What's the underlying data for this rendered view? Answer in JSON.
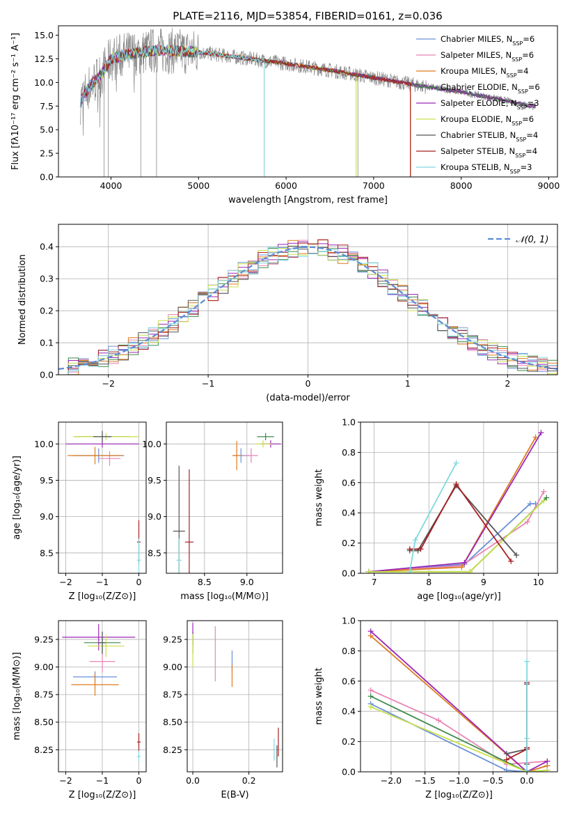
{
  "figure_title": "PLATE=2116, MJD=53854, FIBERID=0161, z=0.036",
  "colors": {
    "chabrier_miles": "#6a8fd8",
    "salpeter_miles": "#e884b4",
    "kroupa_miles": "#e07b1f",
    "chabrier_elodie": "#3c8a4a",
    "salpeter_elodie": "#9b27b5",
    "kroupa_elodie": "#c8e04a",
    "chabrier_stelib": "#555555",
    "salpeter_stelib": "#a81f22",
    "kroupa_stelib": "#7fd8e0",
    "observed_spectrum": "#888888",
    "normal_curve": "#5b8bd6",
    "grid": "#b0b0b0"
  },
  "legend": {
    "series": [
      {
        "label": "Chabrier MILES, N",
        "sub": "SSP",
        "count": "=6",
        "color_key": "chabrier_miles"
      },
      {
        "label": "Salpeter MILES, N",
        "sub": "SSP",
        "count": "=6",
        "color_key": "salpeter_miles"
      },
      {
        "label": "Kroupa MILES, N",
        "sub": "SSP",
        "count": "=4",
        "color_key": "kroupa_miles"
      },
      {
        "label": "Chabrier ELODIE, N",
        "sub": "SSP",
        "count": "=6",
        "color_key": "chabrier_elodie"
      },
      {
        "label": "Salpeter ELODIE, N",
        "sub": "SSP",
        "count": "=3",
        "color_key": "salpeter_elodie"
      },
      {
        "label": "Kroupa ELODIE, N",
        "sub": "SSP",
        "count": "=6",
        "color_key": "kroupa_elodie"
      },
      {
        "label": "Chabrier STELIB, N",
        "sub": "SSP",
        "count": "=4",
        "color_key": "chabrier_stelib"
      },
      {
        "label": "Salpeter STELIB, N",
        "sub": "SSP",
        "count": "=4",
        "color_key": "salpeter_stelib"
      },
      {
        "label": "Kroupa STELIB, N",
        "sub": "SSP",
        "count": "=3",
        "color_key": "kroupa_stelib"
      }
    ],
    "normal_label": "𝒩(0, 1)"
  },
  "chart_data": [
    {
      "id": "spectrum",
      "type": "line",
      "xlabel": "wavelength [Angstrom, rest frame]",
      "ylabel": "Flux [fλ10⁻¹⁷ erg cm⁻² s⁻¹ A⁻¹]",
      "xlim": [
        3400,
        9100
      ],
      "ylim": [
        0,
        16
      ],
      "xticks": [
        4000,
        5000,
        6000,
        7000,
        8000,
        9000
      ],
      "yticks": [
        0.0,
        2.5,
        5.0,
        7.5,
        10.0,
        12.5,
        15.0
      ],
      "ytick_labels": [
        "0.0",
        "2.5",
        "5.0",
        "7.5",
        "10.0",
        "12.5",
        "15.0"
      ],
      "grid": false,
      "legend_position": "upper right",
      "continuum": {
        "wavelength": [
          3650,
          3750,
          3900,
          4000,
          4200,
          4500,
          5000,
          5500,
          6000,
          6500,
          7000,
          7500,
          8000,
          8500,
          8800
        ],
        "flux": [
          8.0,
          9.5,
          11.0,
          12.5,
          13.0,
          13.4,
          13.2,
          12.6,
          12.0,
          11.3,
          10.5,
          9.7,
          9.0,
          8.1,
          7.5
        ]
      },
      "model_wavelength_range": [
        3650,
        8850
      ],
      "model_cutoffs": [
        {
          "series": "kroupa_elodie",
          "start": 3900,
          "end": 6800
        },
        {
          "series": "kroupa_stelib",
          "start": 3650,
          "end": 5750
        },
        {
          "series": "kroupa_miles",
          "start": 3650,
          "end": 7420
        },
        {
          "series": "salpeter_stelib",
          "start": 3650,
          "end": 7420
        }
      ]
    },
    {
      "id": "residual-histogram",
      "type": "histogram",
      "xlabel": "(data-model)/error",
      "ylabel": "Normed distribution",
      "xlim": [
        -2.5,
        2.5
      ],
      "ylim": [
        0,
        0.47
      ],
      "xticks": [
        -2,
        -1,
        0,
        1,
        2
      ],
      "xtick_labels": [
        "−2",
        "−1",
        "0",
        "1",
        "2"
      ],
      "yticks": [
        0.0,
        0.1,
        0.2,
        0.3,
        0.4
      ],
      "ytick_labels": [
        "0.0",
        "0.1",
        "0.2",
        "0.3",
        "0.4"
      ],
      "grid": true,
      "legend_position": "upper right",
      "bin_width": 0.1,
      "normal": {
        "mean": 0,
        "sigma": 1
      }
    },
    {
      "id": "age-vs-z",
      "type": "errorbar",
      "xlabel": "Z [log₁₀(Z/Z⊙)]",
      "ylabel": "age  [log₁₀(age/yr)]",
      "xlim": [
        -2.2,
        0.2
      ],
      "ylim": [
        8.22,
        10.3
      ],
      "xticks": [
        -2,
        -1,
        0
      ],
      "xtick_labels": [
        "−2",
        "−1",
        "0"
      ],
      "yticks": [
        8.5,
        9.0,
        9.5,
        10.0
      ],
      "ytick_labels": [
        "8.5",
        "9.0",
        "9.5",
        "10.0"
      ],
      "grid": true,
      "points": [
        {
          "series": "chabrier_miles",
          "x": -1.1,
          "xerr": 0.7,
          "y": 9.84,
          "yerr": 0.1
        },
        {
          "series": "salpeter_miles",
          "x": -0.8,
          "xerr": 0.3,
          "y": 9.8,
          "yerr": 0.1
        },
        {
          "series": "kroupa_miles",
          "x": -1.2,
          "xerr": 0.75,
          "y": 9.84,
          "yerr": 0.12
        },
        {
          "series": "chabrier_elodie",
          "x": -1.0,
          "xerr": 0.75,
          "y": 10.1,
          "yerr": 0.05
        },
        {
          "series": "salpeter_elodie",
          "x": -1.0,
          "xerr": 1.0,
          "y": 10.0,
          "yerr": 0.05
        },
        {
          "series": "kroupa_elodie",
          "x": -0.9,
          "xerr": 0.9,
          "y": 10.1,
          "yerr": 0.05
        },
        {
          "series": "chabrier_stelib",
          "x": -1.0,
          "xerr": 0.25,
          "y": 10.1,
          "yerr": 0.08
        },
        {
          "series": "salpeter_stelib",
          "x": 0.0,
          "xerr": 0.05,
          "y": 8.65,
          "yerr": 0.3
        },
        {
          "series": "kroupa_stelib",
          "x": 0.0,
          "xerr": 0.05,
          "y": 8.4,
          "yerr": 0.3
        }
      ]
    },
    {
      "id": "age-vs-mass",
      "type": "errorbar",
      "xlabel": "mass [log₁₀(M/M⊙)]",
      "ylabel": "",
      "xlim": [
        8.05,
        9.42
      ],
      "ylim": [
        8.22,
        10.3
      ],
      "xticks": [
        8.5,
        9.0
      ],
      "xtick_labels": [
        "8.5",
        "9.0"
      ],
      "yticks": [
        8.5,
        9.0,
        9.5,
        10.0
      ],
      "ytick_labels": [
        "8.5",
        "9.0",
        "9.5",
        "10.0"
      ],
      "grid": true,
      "points": [
        {
          "series": "chabrier_miles",
          "x": 8.93,
          "xerr": 0.1,
          "y": 9.84,
          "yerr": 0.1
        },
        {
          "series": "salpeter_miles",
          "x": 9.05,
          "xerr": 0.08,
          "y": 9.84,
          "yerr": 0.1
        },
        {
          "series": "kroupa_miles",
          "x": 8.88,
          "xerr": 0.05,
          "y": 9.84,
          "yerr": 0.2
        },
        {
          "series": "chabrier_elodie",
          "x": 9.22,
          "xerr": 0.1,
          "y": 10.1,
          "yerr": 0.05
        },
        {
          "series": "salpeter_elodie",
          "x": 9.28,
          "xerr": 0.12,
          "y": 10.0,
          "yerr": 0.05
        },
        {
          "series": "kroupa_elodie",
          "x": 9.19,
          "xerr": 0.1,
          "y": 10.0,
          "yerr": 0.05
        },
        {
          "series": "chabrier_stelib",
          "x": 8.2,
          "xerr": 0.07,
          "y": 8.8,
          "yerr": 0.9
        },
        {
          "series": "salpeter_stelib",
          "x": 8.32,
          "xerr": 0.05,
          "y": 8.65,
          "yerr": 1.0
        },
        {
          "series": "kroupa_stelib",
          "x": 8.2,
          "xerr": 0.03,
          "y": 8.4,
          "yerr": 0.3
        }
      ]
    },
    {
      "id": "massweight-vs-age",
      "type": "line",
      "xlabel": "age  [log₁₀(age/yr)]",
      "ylabel": "mass weight",
      "xlim": [
        6.75,
        10.35
      ],
      "ylim": [
        0,
        1.0
      ],
      "xticks": [
        7,
        8,
        9,
        10
      ],
      "xtick_labels": [
        "7",
        "8",
        "9",
        "10"
      ],
      "yticks": [
        0.0,
        0.2,
        0.4,
        0.6,
        0.8,
        1.0
      ],
      "ytick_labels": [
        "0.0",
        "0.2",
        "0.4",
        "0.6",
        "0.8",
        "1.0"
      ],
      "grid": true,
      "series": [
        {
          "series": "chabrier_miles",
          "x": [
            6.9,
            8.65,
            9.85,
            9.95
          ],
          "y": [
            0.01,
            0.06,
            0.46,
            0.46
          ]
        },
        {
          "series": "salpeter_miles",
          "x": [
            6.9,
            8.6,
            9.8,
            10.1
          ],
          "y": [
            0.01,
            0.05,
            0.34,
            0.54
          ]
        },
        {
          "series": "kroupa_miles",
          "x": [
            6.9,
            8.6,
            9.95
          ],
          "y": [
            0.01,
            0.04,
            0.9
          ]
        },
        {
          "series": "chabrier_elodie",
          "x": [
            6.9,
            8.75,
            10.15
          ],
          "y": [
            0.01,
            0.01,
            0.5
          ]
        },
        {
          "series": "salpeter_elodie",
          "x": [
            6.9,
            8.65,
            10.05
          ],
          "y": [
            0.01,
            0.07,
            0.93
          ]
        },
        {
          "series": "kroupa_elodie",
          "x": [
            6.9,
            8.75,
            10.1
          ],
          "y": [
            0.01,
            0.01,
            0.48
          ]
        },
        {
          "series": "chabrier_stelib",
          "x": [
            7.65,
            7.8,
            8.5,
            9.6
          ],
          "y": [
            0.15,
            0.15,
            0.58,
            0.12
          ]
        },
        {
          "series": "salpeter_stelib",
          "x": [
            7.65,
            7.85,
            8.5,
            9.5
          ],
          "y": [
            0.16,
            0.16,
            0.59,
            0.08
          ]
        },
        {
          "series": "kroupa_stelib",
          "x": [
            7.65,
            7.75,
            8.5
          ],
          "y": [
            0.01,
            0.22,
            0.73
          ]
        }
      ]
    },
    {
      "id": "mass-vs-z",
      "type": "errorbar",
      "xlabel": "Z [log₁₀(Z/Z⊙)]",
      "ylabel": "mass [log₁₀(M/M⊙)]",
      "xlim": [
        -2.2,
        0.2
      ],
      "ylim": [
        8.05,
        9.42
      ],
      "xticks": [
        -2,
        -1,
        0
      ],
      "xtick_labels": [
        "−2",
        "−1",
        "0"
      ],
      "yticks": [
        8.25,
        8.5,
        8.75,
        9.0,
        9.25
      ],
      "ytick_labels": [
        "8.25",
        "8.50",
        "8.75",
        "9.00",
        "9.25"
      ],
      "grid": true,
      "points": [
        {
          "series": "chabrier_miles",
          "x": -1.2,
          "xerr": 0.6,
          "y": 8.91,
          "yerr": 0.05
        },
        {
          "series": "salpeter_miles",
          "x": -1.0,
          "xerr": 0.35,
          "y": 9.05,
          "yerr": 0.1
        },
        {
          "series": "kroupa_miles",
          "x": -1.2,
          "xerr": 0.65,
          "y": 8.84,
          "yerr": 0.1
        },
        {
          "series": "chabrier_elodie",
          "x": -1.0,
          "xerr": 0.5,
          "y": 9.22,
          "yerr": 0.1
        },
        {
          "series": "salpeter_elodie",
          "x": -1.1,
          "xerr": 1.0,
          "y": 9.27,
          "yerr": 0.12
        },
        {
          "series": "kroupa_elodie",
          "x": -0.9,
          "xerr": 0.5,
          "y": 9.19,
          "yerr": 0.1
        },
        {
          "series": "chabrier_stelib",
          "x": -1.0,
          "xerr": 0.1,
          "y": 9.22,
          "yerr": 0.1
        },
        {
          "series": "salpeter_stelib",
          "x": 0.0,
          "xerr": 0.05,
          "y": 8.32,
          "yerr": 0.08
        },
        {
          "series": "kroupa_stelib",
          "x": 0.0,
          "xerr": 0.05,
          "y": 8.19,
          "yerr": 0.05
        }
      ]
    },
    {
      "id": "mass-vs-ebv",
      "type": "errorbar",
      "xlabel": "E(B-V)",
      "ylabel": "",
      "xlim": [
        -0.02,
        0.32
      ],
      "ylim": [
        8.05,
        9.42
      ],
      "xticks": [
        0.0,
        0.2
      ],
      "xtick_labels": [
        "0.0",
        "0.2"
      ],
      "yticks": [
        8.25,
        8.5,
        8.75,
        9.0,
        9.25
      ],
      "ytick_labels": [
        "8.25",
        "8.50",
        "8.75",
        "9.00",
        "9.25"
      ],
      "grid": true,
      "points": [
        {
          "series": "chabrier_miles",
          "x": 0.14,
          "xerr": 0,
          "y": 9.05,
          "yerr": 0.1
        },
        {
          "series": "salpeter_miles",
          "x": 0.08,
          "xerr": 0,
          "y": 9.12,
          "yerr": 0.25
        },
        {
          "series": "kroupa_miles",
          "x": 0.14,
          "xerr": 0,
          "y": 8.92,
          "yerr": 0.1
        },
        {
          "series": "chabrier_elodie",
          "x": 0.0,
          "xerr": 0,
          "y": 9.22,
          "yerr": 0.1
        },
        {
          "series": "salpeter_elodie",
          "x": 0.0,
          "xerr": 0,
          "y": 9.3,
          "yerr": 0.1
        },
        {
          "series": "kroupa_elodie",
          "x": 0.0,
          "xerr": 0,
          "y": 9.15,
          "yerr": 0.15
        },
        {
          "series": "chabrier_stelib",
          "x": 0.3,
          "xerr": 0,
          "y": 8.19,
          "yerr": 0.1
        },
        {
          "series": "salpeter_stelib",
          "x": 0.305,
          "xerr": 0,
          "y": 8.32,
          "yerr": 0.13
        },
        {
          "series": "kroupa_stelib",
          "x": 0.29,
          "xerr": 0,
          "y": 8.25,
          "yerr": 0.1
        }
      ]
    },
    {
      "id": "massweight-vs-z",
      "type": "line",
      "xlabel": "Z [log₁₀(Z/Z⊙)]",
      "ylabel": "mass weight",
      "xlim": [
        -2.45,
        0.45
      ],
      "ylim": [
        0,
        1.0
      ],
      "xticks": [
        -2.0,
        -1.5,
        -1.0,
        -0.5,
        0.0
      ],
      "xtick_labels": [
        "−2.0",
        "−1.5",
        "−1.0",
        "−0.5",
        "0.0"
      ],
      "yticks": [
        0.0,
        0.2,
        0.4,
        0.6,
        0.8,
        1.0
      ],
      "ytick_labels": [
        "0.0",
        "0.2",
        "0.4",
        "0.6",
        "0.8",
        "1.0"
      ],
      "grid": true,
      "series": [
        {
          "series": "chabrier_miles",
          "x": [
            -2.3,
            -0.3,
            0.0,
            0.3
          ],
          "y": [
            0.45,
            0.01,
            0.0,
            0.04
          ]
        },
        {
          "series": "salpeter_miles",
          "x": [
            -2.3,
            -1.3,
            -0.3,
            0.3
          ],
          "y": [
            0.54,
            0.34,
            0.05,
            0.07
          ]
        },
        {
          "series": "kroupa_miles",
          "x": [
            -2.3,
            0.0,
            0.3
          ],
          "y": [
            0.9,
            0.0,
            0.04
          ]
        },
        {
          "series": "chabrier_elodie",
          "x": [
            -2.3,
            0.0,
            0.3
          ],
          "y": [
            0.5,
            0.0,
            0.01
          ]
        },
        {
          "series": "salpeter_elodie",
          "x": [
            -2.3,
            0.0,
            0.3
          ],
          "y": [
            0.93,
            0.0,
            0.07
          ]
        },
        {
          "series": "kroupa_elodie",
          "x": [
            -2.3,
            0.0,
            0.3
          ],
          "y": [
            0.43,
            0.0,
            0.01
          ]
        },
        {
          "series": "chabrier_stelib",
          "x": [
            -0.3,
            0.0,
            0.0,
            0.0
          ],
          "y": [
            0.12,
            0.15,
            0.58,
            0.05
          ]
        },
        {
          "series": "salpeter_stelib",
          "x": [
            -0.3,
            0.0,
            0.0,
            0.0
          ],
          "y": [
            0.08,
            0.15,
            0.59,
            0.16
          ]
        },
        {
          "series": "kroupa_stelib",
          "x": [
            0.0,
            0.0,
            0.0
          ],
          "y": [
            0.73,
            0.22,
            0.01
          ]
        }
      ]
    }
  ]
}
